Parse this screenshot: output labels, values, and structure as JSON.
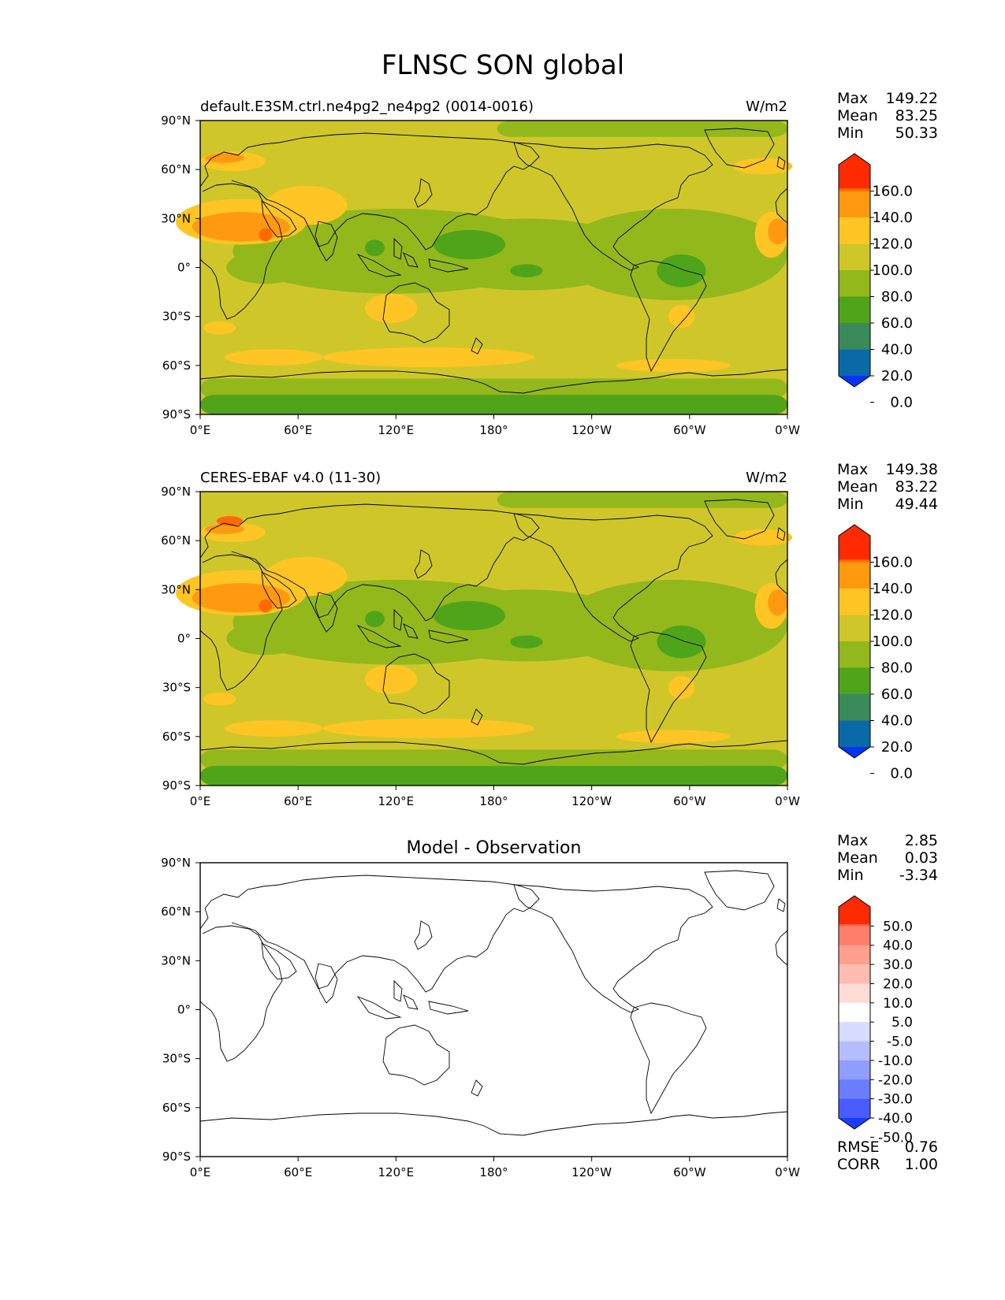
{
  "title": "FLNSC SON global",
  "colors": {
    "ocean_default": "#cfc72a",
    "land_line": "#000000",
    "frame": "#000000"
  },
  "x_ticks": [
    "0°E",
    "60°E",
    "120°E",
    "180°",
    "120°W",
    "60°W",
    "0°W"
  ],
  "y_ticks": [
    "90°N",
    "60°N",
    "30°N",
    "0°",
    "30°S",
    "60°S",
    "90°S"
  ],
  "panels": [
    {
      "left_title": "default.E3SM.ctrl.ne4pg2_ne4pg2 (0014-0016)",
      "center_title": "",
      "units": "W/m2",
      "stats": [
        {
          "label": "Max",
          "value": "149.22"
        },
        {
          "label": "Mean",
          "value": "83.25"
        },
        {
          "label": "Min",
          "value": "50.33"
        }
      ]
    },
    {
      "left_title": "CERES-EBAF v4.0 (11-30)",
      "center_title": "",
      "units": "W/m2",
      "stats": [
        {
          "label": "Max",
          "value": "149.38"
        },
        {
          "label": "Mean",
          "value": "83.22"
        },
        {
          "label": "Min",
          "value": "49.44"
        }
      ]
    },
    {
      "left_title": "",
      "center_title": "Model - Observation",
      "units": "",
      "stats": [
        {
          "label": "Max",
          "value": "2.85"
        },
        {
          "label": "Mean",
          "value": "0.03"
        },
        {
          "label": "Min",
          "value": "-3.34"
        }
      ],
      "extra_stats": [
        {
          "label": "RMSE",
          "value": "0.76"
        },
        {
          "label": "CORR",
          "value": "1.00"
        }
      ]
    }
  ],
  "colorbars": {
    "field": {
      "labels": [
        "160.0",
        "140.0",
        "120.0",
        "100.0",
        "80.0",
        "60.0",
        "40.0",
        "20.0",
        "0.0"
      ],
      "colors": [
        "#ff2a00",
        "#ff6a00",
        "#ff9a10",
        "#ffc524",
        "#cfc72a",
        "#93b81c",
        "#4fa41a",
        "#3a8a5a",
        "#0a6aa8",
        "#0033ff"
      ]
    },
    "diff": {
      "labels": [
        "50.0",
        "40.0",
        "30.0",
        "20.0",
        "10.0",
        "5.0",
        "-5.0",
        "-10.0",
        "-20.0",
        "-30.0",
        "-40.0",
        "-50.0"
      ],
      "colors": [
        "#ff2a00",
        "#ff5a40",
        "#ff7f6a",
        "#ff9f90",
        "#ffbcb0",
        "#ffdcd6",
        "#ffffff",
        "#d6dcff",
        "#b4beff",
        "#8f9dff",
        "#6b7cff",
        "#4a5cff",
        "#1a3cff"
      ]
    }
  },
  "chart_data": [
    {
      "type": "heatmap",
      "title": "default.E3SM.ctrl.ne4pg2_ne4pg2 (0014-0016)",
      "units": "W/m2",
      "xlim": [
        0,
        360
      ],
      "ylim": [
        -90,
        90
      ],
      "levels": [
        0,
        20,
        40,
        60,
        80,
        100,
        120,
        140,
        160
      ],
      "stats": {
        "max": 149.22,
        "mean": 83.25,
        "min": 50.33
      }
    },
    {
      "type": "heatmap",
      "title": "CERES-EBAF v4.0 (11-30)",
      "units": "W/m2",
      "xlim": [
        0,
        360
      ],
      "ylim": [
        -90,
        90
      ],
      "levels": [
        0,
        20,
        40,
        60,
        80,
        100,
        120,
        140,
        160
      ],
      "stats": {
        "max": 149.38,
        "mean": 83.22,
        "min": 49.44
      }
    },
    {
      "type": "heatmap",
      "title": "Model - Observation",
      "xlim": [
        0,
        360
      ],
      "ylim": [
        -90,
        90
      ],
      "levels": [
        -50,
        -40,
        -30,
        -20,
        -10,
        -5,
        5,
        10,
        20,
        30,
        40,
        50
      ],
      "stats": {
        "max": 2.85,
        "mean": 0.03,
        "min": -3.34,
        "rmse": 0.76,
        "corr": 1.0
      }
    }
  ]
}
